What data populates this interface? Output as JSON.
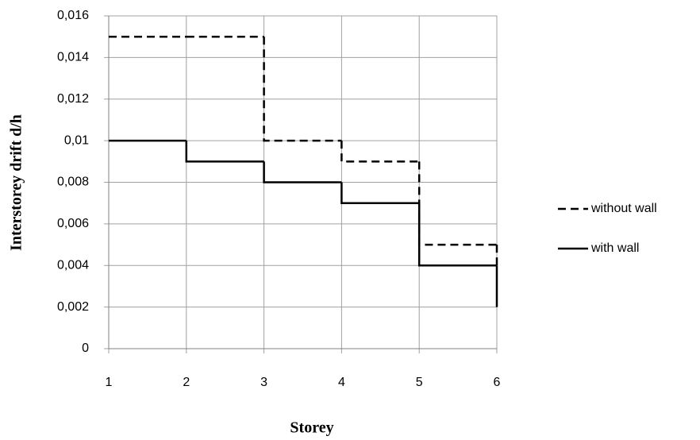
{
  "chart_data": {
    "type": "line",
    "step": "post",
    "x_label": "Storey",
    "y_label": "Interstorey  drift d/h",
    "xlim": [
      1,
      6
    ],
    "xticks": [
      1,
      2,
      3,
      4,
      5,
      6
    ],
    "ylim": [
      0,
      0.016
    ],
    "yticks": [
      0,
      {
        "value": 0.002,
        "label": "0,002"
      },
      {
        "value": 0.004,
        "label": "0,004"
      },
      {
        "value": 0.006,
        "label": "0,006"
      },
      {
        "value": 0.008,
        "label": "0,008"
      },
      {
        "value": 0.01,
        "label": "0,01"
      },
      {
        "value": 0.012,
        "label": "0,012"
      },
      {
        "value": 0.014,
        "label": "0,014"
      },
      {
        "value": 0.016,
        "label": "0,016"
      }
    ],
    "grid": true,
    "legend": "right",
    "x": [
      1,
      2,
      3,
      4,
      5,
      6
    ],
    "series": [
      {
        "name": "without wall",
        "color": "#000000",
        "dash": "dashed",
        "values": [
          0.015,
          0.015,
          0.01,
          0.009,
          0.005,
          0.004
        ]
      },
      {
        "name": "with wall",
        "color": "#000000",
        "dash": "solid",
        "values": [
          0.01,
          0.009,
          0.008,
          0.007,
          0.004,
          0.002
        ]
      }
    ]
  }
}
